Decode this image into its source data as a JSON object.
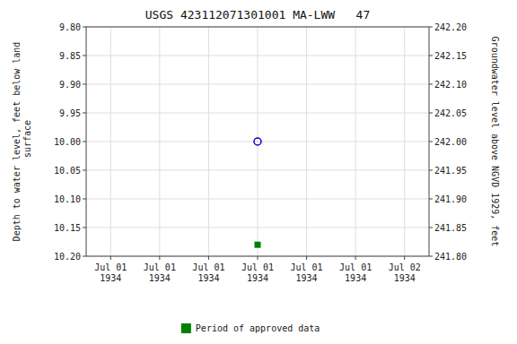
{
  "chart_data": {
    "type": "scatter",
    "title": "USGS 423112071301001 MA-LWW   47",
    "y_label": "Depth to water level, feet below land\n surface",
    "y2_label": "Groundwater level above NGVD 1929, feet",
    "categories": [
      "Jul 01\n1934",
      "Jul 01\n1934",
      "Jul 01\n1934",
      "Jul 01\n1934",
      "Jul 01\n1934",
      "Jul 01\n1934",
      "Jul 02\n1934"
    ],
    "series": [
      {
        "color": "#0000cc",
        "marker": "circle",
        "values": [
          null,
          null,
          null,
          10.0,
          null,
          null,
          null
        ]
      },
      {
        "name": "Period of approved data",
        "color": "#008000",
        "marker": "square",
        "values": [
          null,
          null,
          null,
          10.18,
          null,
          null,
          null
        ]
      }
    ],
    "ylim": [
      10.2,
      9.8
    ],
    "yticks": [
      {
        "value": 9.8,
        "label": "9.80"
      },
      {
        "value": 9.85,
        "label": "9.85"
      },
      {
        "value": 9.9,
        "label": "9.90"
      },
      {
        "value": 9.95,
        "label": "9.95"
      },
      {
        "value": 10.0,
        "label": "10.00"
      },
      {
        "value": 10.05,
        "label": "10.05"
      },
      {
        "value": 10.1,
        "label": "10.10"
      },
      {
        "value": 10.15,
        "label": "10.15"
      },
      {
        "value": 10.2,
        "label": "10.20"
      }
    ],
    "y2lim": [
      241.8,
      242.2
    ],
    "y2ticks": [
      {
        "value": 241.8,
        "label": "241.80"
      },
      {
        "value": 241.85,
        "label": "241.85"
      },
      {
        "value": 241.9,
        "label": "241.90"
      },
      {
        "value": 241.95,
        "label": "241.95"
      },
      {
        "value": 242.0,
        "label": "242.00"
      },
      {
        "value": 242.05,
        "label": "242.05"
      },
      {
        "value": 242.1,
        "label": "242.10"
      },
      {
        "value": 242.15,
        "label": "242.15"
      },
      {
        "value": 242.2,
        "label": "242.20"
      }
    ],
    "grid": true,
    "legend": "bottom"
  }
}
